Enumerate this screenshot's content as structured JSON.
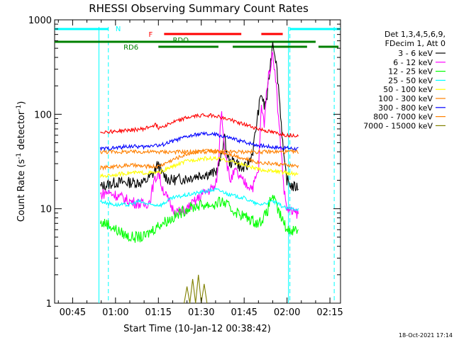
{
  "chart_data": {
    "type": "line",
    "title": "RHESSI Observing Summary Count Rates",
    "xlabel": "Start Time (10-Jan-12 00:38:42)",
    "ylabel_main": "Count Rate (s",
    "ylabel_sup1": "-1",
    "ylabel_mid": " detector",
    "ylabel_sup2": "-1",
    "ylabel_end": ")",
    "yscale": "log",
    "ylim": [
      1,
      1000
    ],
    "xlim_minutes": [
      38.7,
      138.7
    ],
    "x_ticks": [
      {
        "min": 45,
        "label": "00:45"
      },
      {
        "min": 60,
        "label": "01:00"
      },
      {
        "min": 75,
        "label": "01:15"
      },
      {
        "min": 90,
        "label": "01:30"
      },
      {
        "min": 105,
        "label": "01:45"
      },
      {
        "min": 120,
        "label": "02:00"
      },
      {
        "min": 135,
        "label": "02:15"
      }
    ],
    "y_ticks": [
      {
        "value": 1,
        "label": "1"
      },
      {
        "value": 10,
        "label": "10"
      },
      {
        "value": 100,
        "label": "100"
      },
      {
        "value": 1000,
        "label": "1000"
      }
    ],
    "legend_header": [
      "Det 1,3,4,5,6,9,",
      "FDecim 1, Att 0"
    ],
    "series": [
      {
        "name": "3 - 6 keV",
        "color": "#000000",
        "values": [
          [
            54.7,
            17
          ],
          [
            60,
            19
          ],
          [
            65,
            19
          ],
          [
            70,
            19
          ],
          [
            73,
            23
          ],
          [
            75,
            30
          ],
          [
            76,
            24
          ],
          [
            79,
            20
          ],
          [
            85,
            21
          ],
          [
            90,
            23
          ],
          [
            95,
            24
          ],
          [
            97,
            35
          ],
          [
            98,
            60
          ],
          [
            99,
            38
          ],
          [
            100,
            30
          ],
          [
            102,
            33
          ],
          [
            104,
            26
          ],
          [
            106,
            28
          ],
          [
            108,
            40
          ],
          [
            110,
            110
          ],
          [
            111,
            170
          ],
          [
            112,
            120
          ],
          [
            113,
            150
          ],
          [
            114,
            300
          ],
          [
            115,
            600
          ],
          [
            116,
            400
          ],
          [
            117,
            200
          ],
          [
            118,
            80
          ],
          [
            119,
            30
          ],
          [
            120,
            20
          ],
          [
            122,
            17
          ],
          [
            124,
            17
          ]
        ]
      },
      {
        "name": "6 - 12 keV",
        "color": "#ff00ff",
        "values": [
          [
            54.7,
            14
          ],
          [
            57,
            15
          ],
          [
            60,
            14
          ],
          [
            65,
            12
          ],
          [
            70,
            11
          ],
          [
            72,
            12
          ],
          [
            73,
            17
          ],
          [
            75,
            25
          ],
          [
            76,
            18
          ],
          [
            78,
            13
          ],
          [
            80,
            10
          ],
          [
            83,
            9
          ],
          [
            85,
            10
          ],
          [
            88,
            12
          ],
          [
            90,
            14
          ],
          [
            93,
            16
          ],
          [
            95,
            17
          ],
          [
            96,
            30
          ],
          [
            97,
            120
          ],
          [
            98,
            50
          ],
          [
            99,
            30
          ],
          [
            100,
            20
          ],
          [
            102,
            25
          ],
          [
            104,
            20
          ],
          [
            106,
            18
          ],
          [
            108,
            17
          ],
          [
            110,
            25
          ],
          [
            111,
            120
          ],
          [
            112,
            80
          ],
          [
            113,
            200
          ],
          [
            114,
            300
          ],
          [
            115,
            450
          ],
          [
            116,
            250
          ],
          [
            117,
            90
          ],
          [
            118,
            40
          ],
          [
            119,
            15
          ],
          [
            120,
            10
          ],
          [
            122,
            9
          ],
          [
            124,
            9
          ]
        ]
      },
      {
        "name": "12 - 25 keV",
        "color": "#00ff00",
        "values": [
          [
            54.7,
            7
          ],
          [
            57,
            7
          ],
          [
            60,
            6
          ],
          [
            65,
            5
          ],
          [
            70,
            5
          ],
          [
            73,
            6
          ],
          [
            76,
            7
          ],
          [
            80,
            8
          ],
          [
            85,
            10
          ],
          [
            90,
            11
          ],
          [
            95,
            11
          ],
          [
            97,
            12
          ],
          [
            99,
            11
          ],
          [
            100,
            10
          ],
          [
            103,
            9
          ],
          [
            106,
            8
          ],
          [
            110,
            7
          ],
          [
            113,
            9
          ],
          [
            114,
            12
          ],
          [
            115,
            14
          ],
          [
            116,
            11
          ],
          [
            118,
            8
          ],
          [
            120,
            6
          ],
          [
            124,
            6
          ]
        ]
      },
      {
        "name": "25 - 50 keV",
        "color": "#00ffff",
        "values": [
          [
            54.7,
            12
          ],
          [
            60,
            11
          ],
          [
            65,
            11
          ],
          [
            68,
            12
          ],
          [
            72,
            11
          ],
          [
            76,
            11
          ],
          [
            80,
            13
          ],
          [
            85,
            14
          ],
          [
            90,
            15
          ],
          [
            95,
            16
          ],
          [
            98,
            15
          ],
          [
            100,
            14
          ],
          [
            105,
            13
          ],
          [
            110,
            11
          ],
          [
            115,
            12
          ],
          [
            120,
            10
          ],
          [
            124,
            10
          ]
        ]
      },
      {
        "name": "50 - 100 keV",
        "color": "#ffff00",
        "values": [
          [
            54.7,
            22
          ],
          [
            60,
            23
          ],
          [
            65,
            24
          ],
          [
            70,
            24
          ],
          [
            75,
            24
          ],
          [
            80,
            28
          ],
          [
            85,
            32
          ],
          [
            90,
            34
          ],
          [
            95,
            34
          ],
          [
            100,
            32
          ],
          [
            105,
            29
          ],
          [
            110,
            26
          ],
          [
            115,
            25
          ],
          [
            120,
            24
          ],
          [
            124,
            23
          ]
        ]
      },
      {
        "name": "100 - 300 keV",
        "color": "#ff8000",
        "values": [
          [
            54.7,
            27
          ],
          [
            60,
            28
          ],
          [
            65,
            29
          ],
          [
            70,
            28
          ],
          [
            75,
            28
          ],
          [
            80,
            33
          ],
          [
            85,
            38
          ],
          [
            90,
            41
          ],
          [
            95,
            41
          ],
          [
            100,
            38
          ],
          [
            105,
            34
          ],
          [
            110,
            31
          ],
          [
            115,
            30
          ],
          [
            120,
            29
          ],
          [
            124,
            28
          ]
        ]
      },
      {
        "name": "300 - 800 keV",
        "color": "#0000ff",
        "values": [
          [
            54.7,
            43
          ],
          [
            60,
            44
          ],
          [
            65,
            46
          ],
          [
            70,
            45
          ],
          [
            74,
            48
          ],
          [
            75,
            46
          ],
          [
            80,
            52
          ],
          [
            85,
            58
          ],
          [
            90,
            62
          ],
          [
            95,
            61
          ],
          [
            100,
            56
          ],
          [
            105,
            51
          ],
          [
            110,
            47
          ],
          [
            115,
            45
          ],
          [
            120,
            44
          ],
          [
            124,
            43
          ]
        ]
      },
      {
        "name": "800 - 7000 keV",
        "color": "#ff8000",
        "values": [
          [
            54.7,
            40
          ],
          [
            124,
            40
          ]
        ]
      },
      {
        "name": "7000 - 15000 keV",
        "color": "#808000",
        "values": [
          [
            84,
            1
          ],
          [
            85,
            1.5
          ],
          [
            86,
            1
          ],
          [
            87,
            1.8
          ],
          [
            88,
            1
          ],
          [
            89,
            2
          ],
          [
            90,
            1
          ],
          [
            91,
            1.6
          ],
          [
            92,
            1
          ]
        ]
      },
      {
        "name": "red-top",
        "color": "#ff0000",
        "values": [
          [
            54.7,
            65
          ],
          [
            60,
            66
          ],
          [
            65,
            68
          ],
          [
            70,
            70
          ],
          [
            74,
            78
          ],
          [
            75,
            72
          ],
          [
            80,
            82
          ],
          [
            85,
            92
          ],
          [
            90,
            98
          ],
          [
            95,
            97
          ],
          [
            98,
            90
          ],
          [
            100,
            88
          ],
          [
            105,
            78
          ],
          [
            110,
            70
          ],
          [
            115,
            64
          ],
          [
            120,
            60
          ],
          [
            124,
            60
          ]
        ]
      }
    ],
    "status_bars": [
      {
        "label": "N",
        "color": "#00ffff",
        "segments": [
          [
            38.7,
            57.5
          ],
          [
            121,
            138.7
          ]
        ]
      },
      {
        "label": "F",
        "color": "#ff0000",
        "segments": [
          [
            77,
            104
          ],
          [
            111,
            118.5
          ]
        ]
      },
      {
        "label": "RDO",
        "color": "#008000",
        "segments": [
          [
            38.7,
            130
          ]
        ]
      },
      {
        "label": "RD6",
        "color": "#008000",
        "segments": [
          [
            75,
            96
          ],
          [
            101,
            127
          ],
          [
            131,
            138
          ]
        ]
      }
    ],
    "dashed_lines_minutes": [
      57.5,
      121,
      136.5
    ],
    "solid_vertical_minutes": [
      54.2,
      120.5
    ],
    "footer_date": "18-Oct-2021 17:14"
  }
}
